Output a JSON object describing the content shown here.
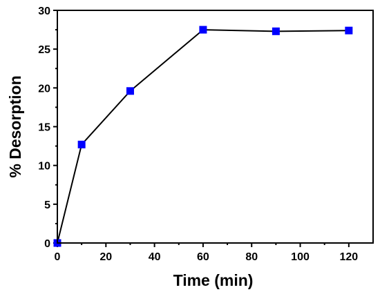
{
  "chart_data": {
    "type": "line",
    "title": "",
    "xlabel": "Time (min)",
    "ylabel": "% Desorption",
    "xlim": [
      0,
      130
    ],
    "ylim": [
      0,
      30
    ],
    "x_ticks": [
      0,
      20,
      40,
      60,
      80,
      100,
      120
    ],
    "y_ticks": [
      0,
      5,
      10,
      15,
      20,
      25,
      30
    ],
    "grid": false,
    "legend": "none",
    "series": [
      {
        "x": [
          0,
          10,
          30,
          60,
          90,
          120
        ],
        "y": [
          0,
          12.7,
          19.6,
          27.5,
          27.3,
          27.4
        ],
        "marker": "square",
        "line_color": "#000000",
        "marker_color": "#0000ff"
      }
    ]
  }
}
